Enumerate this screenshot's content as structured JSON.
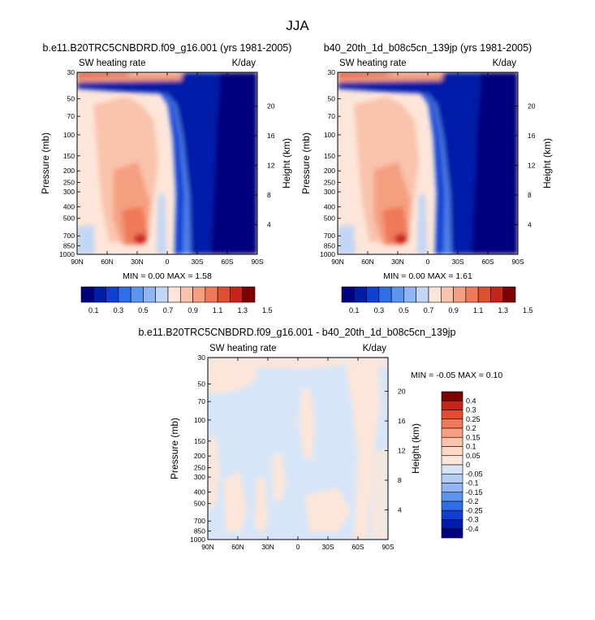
{
  "page_title": "JJA",
  "chart_data": [
    {
      "type": "heatmap",
      "title": "b.e11.B20TRC5CNBDRD.f09_g16.001 (yrs 1981-2005)",
      "left_label": "SW heating rate",
      "right_label": "K/day",
      "ylabel": "Pressure (mb)",
      "ylabel_right": "Height (km)",
      "x_ticks": [
        "90N",
        "60N",
        "30N",
        "0",
        "30S",
        "60S",
        "90S"
      ],
      "y_ticks": [
        "30",
        "50",
        "70",
        "100",
        "150",
        "200",
        "250",
        "300",
        "400",
        "500",
        "700",
        "850",
        "1000"
      ],
      "y_right_ticks": [
        "20",
        "16",
        "12",
        "8",
        "4"
      ],
      "stats": "MIN =  0.00  MAX =  1.58",
      "colorbar": {
        "orientation": "horizontal",
        "labels": [
          "0.1",
          "0.3",
          "0.5",
          "0.7",
          "0.9",
          "1.1",
          "1.3",
          "1.5"
        ],
        "colors": [
          "#00007f",
          "#001da8",
          "#0f3fd3",
          "#2e6ee8",
          "#5c95ef",
          "#8fb6f2",
          "#c3d6f5",
          "#fde6d9",
          "#f9c3ac",
          "#f59f81",
          "#ef7958",
          "#e14f2f",
          "#c9241a",
          "#7f0000"
        ]
      },
      "max_value": 1.58,
      "min_value": 0.0
    },
    {
      "type": "heatmap",
      "title": "b40_20th_1d_b08c5cn_139jp (yrs 1981-2005)",
      "left_label": "SW heating rate",
      "right_label": "K/day",
      "ylabel": "Pressure (mb)",
      "ylabel_right": "Height (km)",
      "x_ticks": [
        "90N",
        "60N",
        "30N",
        "0",
        "30S",
        "60S",
        "90S"
      ],
      "y_ticks": [
        "30",
        "50",
        "70",
        "100",
        "150",
        "200",
        "250",
        "300",
        "400",
        "500",
        "700",
        "850",
        "1000"
      ],
      "y_right_ticks": [
        "20",
        "16",
        "12",
        "8",
        "4"
      ],
      "stats": "MIN =  0.00  MAX =  1.61",
      "colorbar": {
        "orientation": "horizontal",
        "labels": [
          "0.1",
          "0.3",
          "0.5",
          "0.7",
          "0.9",
          "1.1",
          "1.3",
          "1.5"
        ],
        "colors": [
          "#00007f",
          "#001da8",
          "#0f3fd3",
          "#2e6ee8",
          "#5c95ef",
          "#8fb6f2",
          "#c3d6f5",
          "#fde6d9",
          "#f9c3ac",
          "#f59f81",
          "#ef7958",
          "#e14f2f",
          "#c9241a",
          "#7f0000"
        ]
      },
      "max_value": 1.61,
      "min_value": 0.0
    },
    {
      "type": "heatmap",
      "title": "b.e11.B20TRC5CNBDRD.f09_g16.001 - b40_20th_1d_b08c5cn_139jp",
      "left_label": "SW heating rate",
      "right_label": "K/day",
      "ylabel": "Pressure (mb)",
      "ylabel_right": "Height (km)",
      "x_ticks": [
        "90N",
        "60N",
        "30N",
        "0",
        "30S",
        "60S",
        "90S"
      ],
      "y_ticks": [
        "30",
        "50",
        "70",
        "100",
        "150",
        "200",
        "250",
        "300",
        "400",
        "500",
        "700",
        "850",
        "1000"
      ],
      "y_right_ticks": [
        "20",
        "16",
        "12",
        "8",
        "4"
      ],
      "stats": "MIN = -0.05  MAX =  0.10",
      "colorbar": {
        "orientation": "vertical",
        "labels": [
          "0.4",
          "0.3",
          "0.25",
          "0.2",
          "0.15",
          "0.1",
          "0.05",
          "0",
          "-0.05",
          "-0.1",
          "-0.15",
          "-0.2",
          "-0.25",
          "-0.3",
          "-0.4"
        ],
        "colors": [
          "#7f0000",
          "#c9241a",
          "#e14f2f",
          "#ef7958",
          "#f59f81",
          "#f9c3ac",
          "#fbd8c5",
          "#fde6d9",
          "#d6e6f8",
          "#b4cef2",
          "#8fb6f2",
          "#5c95ef",
          "#2e6ee8",
          "#0f3fd3",
          "#001da8",
          "#00007f"
        ]
      },
      "max_value": 0.1,
      "min_value": -0.05
    }
  ]
}
